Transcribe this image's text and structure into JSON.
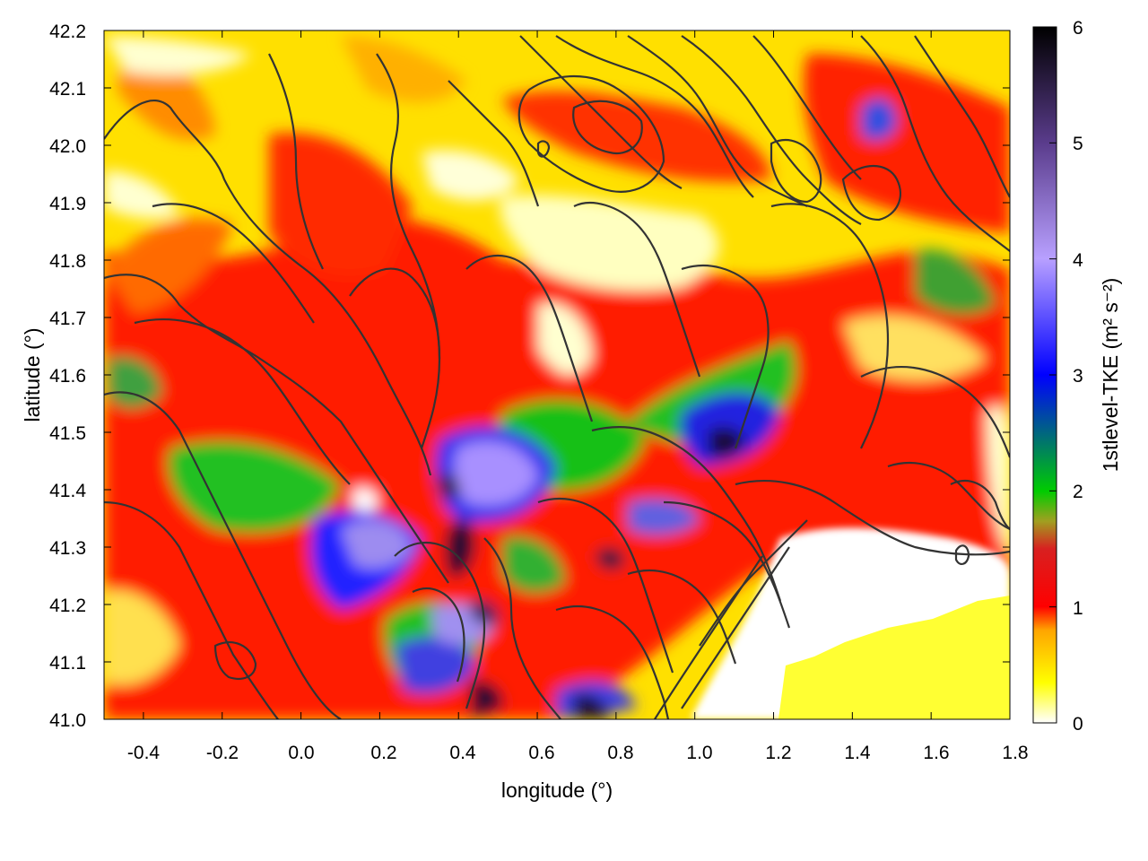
{
  "chart_data": {
    "type": "heatmap",
    "title": "",
    "xlabel": "longitude (°)",
    "ylabel": "latitude (°)",
    "colorbar_label": "1stlevel-TKE (m² s⁻²)",
    "xlim": [
      -0.5,
      1.8
    ],
    "ylim": [
      41.0,
      42.2
    ],
    "clim": [
      0,
      6
    ],
    "x_ticks": [
      "-0.4",
      "-0.2",
      "0.0",
      "0.2",
      "0.4",
      "0.6",
      "0.8",
      "1.0",
      "1.2",
      "1.4",
      "1.6",
      "1.8"
    ],
    "x_tick_values": [
      -0.4,
      -0.2,
      0.0,
      0.2,
      0.4,
      0.6,
      0.8,
      1.0,
      1.2,
      1.4,
      1.6,
      1.8
    ],
    "y_ticks": [
      "41.0",
      "41.1",
      "41.2",
      "41.3",
      "41.4",
      "41.5",
      "41.6",
      "41.7",
      "41.8",
      "41.9",
      "42.0",
      "42.1",
      "42.2"
    ],
    "y_tick_values": [
      41.0,
      41.1,
      41.2,
      41.3,
      41.4,
      41.5,
      41.6,
      41.7,
      41.8,
      41.9,
      42.0,
      42.1,
      42.2
    ],
    "colorbar_ticks": [
      "0",
      "1",
      "2",
      "3",
      "4",
      "5",
      "6"
    ],
    "colorbar_tick_values": [
      0,
      1,
      2,
      3,
      4,
      5,
      6
    ],
    "colormap": [
      {
        "value": 0.0,
        "color": "#ffffff"
      },
      {
        "value": 0.35,
        "color": "#ffff00"
      },
      {
        "value": 0.8,
        "color": "#ffa500"
      },
      {
        "value": 1.0,
        "color": "#ff0000"
      },
      {
        "value": 1.5,
        "color": "#d82020"
      },
      {
        "value": 1.75,
        "color": "#a0a020"
      },
      {
        "value": 2.0,
        "color": "#00cc00"
      },
      {
        "value": 3.0,
        "color": "#0000ff"
      },
      {
        "value": 4.0,
        "color": "#b8a0ff"
      },
      {
        "value": 5.0,
        "color": "#5a3c8c"
      },
      {
        "value": 6.0,
        "color": "#000000"
      }
    ],
    "overlay": "terrain elevation contour lines",
    "high_tke_centers": [
      {
        "lon": 0.4,
        "lat": 41.3,
        "value": 5.6
      },
      {
        "lon": 0.36,
        "lat": 41.42,
        "value": 5.2
      },
      {
        "lon": 0.45,
        "lat": 41.18,
        "value": 5.4
      },
      {
        "lon": 1.06,
        "lat": 41.47,
        "value": 5.5
      },
      {
        "lon": 0.45,
        "lat": 41.03,
        "value": 5.8
      },
      {
        "lon": 0.73,
        "lat": 41.02,
        "value": 5.8
      },
      {
        "lon": 0.8,
        "lat": 41.27,
        "value": 5.2
      },
      {
        "lon": 1.47,
        "lat": 42.03,
        "value": 4.0
      }
    ]
  }
}
